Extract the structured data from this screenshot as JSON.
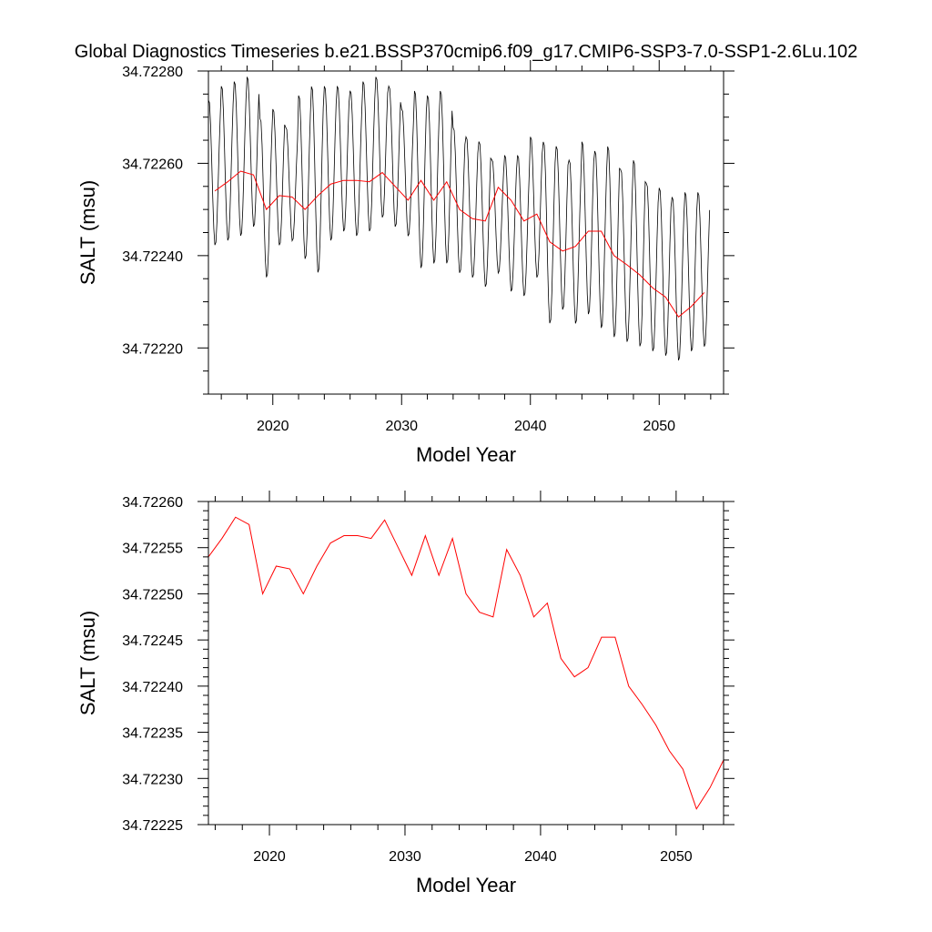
{
  "title": "Global Diagnostics Timeseries b.e21.BSSP370cmip6.f09_g17.CMIP6-SSP3-7.0-SSP1-2.6Lu.102",
  "colors": {
    "monthly": "#000000",
    "annual": "#ff0000",
    "axes": "#000000",
    "background": "#ffffff"
  },
  "chart_data": [
    {
      "type": "line",
      "panel": "top",
      "xlabel": "Model Year",
      "ylabel": "SALT (msu)",
      "xlim": [
        2015,
        2055
      ],
      "ylim": [
        34.7221,
        34.7228
      ],
      "xticks": [
        2020,
        2030,
        2040,
        2050
      ],
      "xtick_labels": [
        "2020",
        "2030",
        "2040",
        "2050"
      ],
      "yticks": [
        34.7222,
        34.7224,
        34.7226,
        34.7228
      ],
      "ytick_labels": [
        "34.72220",
        "34.72240",
        "34.72260",
        "34.72280"
      ],
      "grid": false,
      "series": [
        {
          "role": "monthly",
          "color": "#000000",
          "start_year": 2015,
          "period_years": 1,
          "samples_per_year": 12,
          "peaks": [
            34.72274,
            34.72277,
            34.72278,
            34.72279,
            34.7227,
            34.72272,
            34.72268,
            34.72275,
            34.72277,
            34.72277,
            34.72277,
            34.72276,
            34.72278,
            34.72279,
            34.72277,
            34.72272,
            34.72276,
            34.72275,
            34.72276,
            34.72268,
            34.72266,
            34.72265,
            34.72261,
            34.72262,
            34.72262,
            34.72266,
            34.72265,
            34.72264,
            34.72261,
            34.72265,
            34.72263,
            34.72264,
            34.72259,
            34.72261,
            34.72256,
            34.72255,
            34.72253,
            34.72254,
            34.72254
          ],
          "troughs": [
            34.72242,
            34.72243,
            34.72244,
            34.72246,
            34.72235,
            34.72242,
            34.72243,
            34.72239,
            34.72236,
            34.72243,
            34.72245,
            34.72244,
            34.72245,
            34.72248,
            34.72246,
            34.72244,
            34.72237,
            34.72238,
            34.72238,
            34.72236,
            34.72235,
            34.72233,
            34.72236,
            34.72232,
            34.72231,
            34.72235,
            34.72225,
            34.72228,
            34.72225,
            34.72227,
            34.72224,
            34.72222,
            34.72221,
            34.7222,
            34.72219,
            34.72218,
            34.72217,
            34.72219,
            34.7222
          ]
        },
        {
          "role": "annual",
          "color": "#ff0000",
          "x": [
            2015.5,
            2016.5,
            2017.5,
            2018.5,
            2019.5,
            2020.5,
            2021.5,
            2022.5,
            2023.5,
            2024.5,
            2025.5,
            2026.5,
            2027.5,
            2028.5,
            2029.5,
            2030.5,
            2031.5,
            2032.5,
            2033.5,
            2034.5,
            2035.5,
            2036.5,
            2037.5,
            2038.5,
            2039.5,
            2040.5,
            2041.5,
            2042.5,
            2043.5,
            2044.5,
            2045.5,
            2046.5,
            2047.5,
            2048.5,
            2049.5,
            2050.5,
            2051.5,
            2052.5,
            2053.5
          ],
          "y": [
            34.72254,
            34.72256,
            34.722583,
            34.722575,
            34.7225,
            34.72253,
            34.722527,
            34.7225,
            34.72253,
            34.722555,
            34.722563,
            34.722563,
            34.72256,
            34.72258,
            34.72255,
            34.72252,
            34.722563,
            34.72252,
            34.72256,
            34.7225,
            34.72248,
            34.722475,
            34.722548,
            34.72252,
            34.722475,
            34.72249,
            34.72243,
            34.72241,
            34.72242,
            34.722453,
            34.722453,
            34.7224,
            34.72238,
            34.722358,
            34.72233,
            34.72231,
            34.722267,
            34.72229,
            34.72232
          ]
        }
      ]
    },
    {
      "type": "line",
      "panel": "bottom",
      "xlabel": "Model Year",
      "ylabel": "SALT (msu)",
      "xlim": [
        2015.5,
        2053.5
      ],
      "ylim": [
        34.72225,
        34.7226
      ],
      "xticks": [
        2020,
        2030,
        2040,
        2050
      ],
      "xtick_labels": [
        "2020",
        "2030",
        "2040",
        "2050"
      ],
      "yticks": [
        34.72225,
        34.7223,
        34.72235,
        34.7224,
        34.72245,
        34.7225,
        34.72255,
        34.7226
      ],
      "ytick_labels": [
        "34.72225",
        "34.72230",
        "34.72235",
        "34.72240",
        "34.72245",
        "34.72250",
        "34.72255",
        "34.72260"
      ],
      "grid": false,
      "series": [
        {
          "role": "annual",
          "color": "#ff0000",
          "x": [
            2015.5,
            2016.5,
            2017.5,
            2018.5,
            2019.5,
            2020.5,
            2021.5,
            2022.5,
            2023.5,
            2024.5,
            2025.5,
            2026.5,
            2027.5,
            2028.5,
            2029.5,
            2030.5,
            2031.5,
            2032.5,
            2033.5,
            2034.5,
            2035.5,
            2036.5,
            2037.5,
            2038.5,
            2039.5,
            2040.5,
            2041.5,
            2042.5,
            2043.5,
            2044.5,
            2045.5,
            2046.5,
            2047.5,
            2048.5,
            2049.5,
            2050.5,
            2051.5,
            2052.5,
            2053.5
          ],
          "y": [
            34.72254,
            34.72256,
            34.722583,
            34.722575,
            34.7225,
            34.72253,
            34.722527,
            34.7225,
            34.72253,
            34.722555,
            34.722563,
            34.722563,
            34.72256,
            34.72258,
            34.72255,
            34.72252,
            34.722563,
            34.72252,
            34.72256,
            34.7225,
            34.72248,
            34.722475,
            34.722548,
            34.72252,
            34.722475,
            34.72249,
            34.72243,
            34.72241,
            34.72242,
            34.722453,
            34.722453,
            34.7224,
            34.72238,
            34.722358,
            34.72233,
            34.72231,
            34.722267,
            34.72229,
            34.72232
          ]
        }
      ]
    }
  ]
}
